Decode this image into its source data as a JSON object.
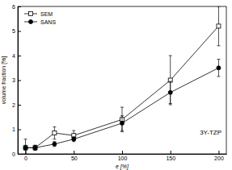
{
  "chart_data": {
    "type": "line",
    "x_label": "e [%]",
    "y_label": "volume fraction [%]",
    "annotation": "3Y-TZP",
    "x": [
      0,
      10,
      30,
      50,
      100,
      150,
      200
    ],
    "series": [
      {
        "name": "SEM",
        "color": "#000000",
        "marker": "square",
        "line_style": "solid",
        "values": [
          0.25,
          0.25,
          0.85,
          0.75,
          1.4,
          3.0,
          5.2
        ],
        "errors": [
          0.35,
          0.1,
          0.25,
          0.2,
          0.5,
          1.0,
          0.8
        ]
      },
      {
        "name": "SANS",
        "color": "#000000",
        "marker": "circle",
        "line_style": "solid",
        "values": [
          0.25,
          0.25,
          0.4,
          0.6,
          1.25,
          2.5,
          3.5
        ],
        "errors": [
          0.1,
          0.1,
          0.1,
          0.1,
          0.3,
          0.45,
          0.35
        ]
      }
    ],
    "xlim": [
      -8,
      208
    ],
    "xticks": [
      0,
      50,
      100,
      150,
      200
    ],
    "ylim": [
      0,
      6
    ],
    "yticks": [
      0,
      1,
      2,
      3,
      4,
      5,
      6
    ],
    "grid": false,
    "legend": "top-left"
  }
}
